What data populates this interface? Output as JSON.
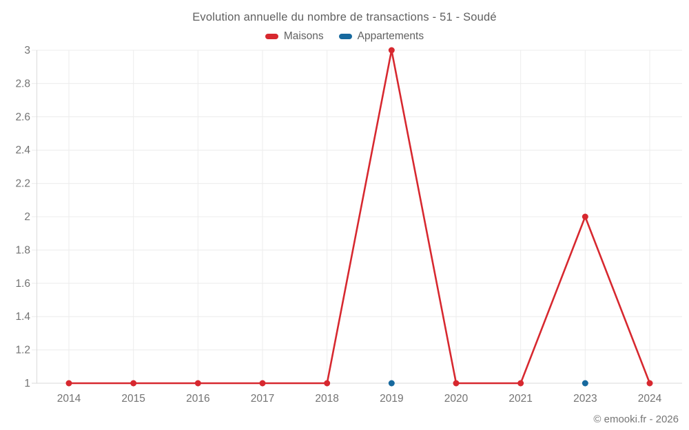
{
  "chart_data": {
    "type": "line",
    "title": "Evolution annuelle du nombre de transactions - 51 - Soudé",
    "categories": [
      "2014",
      "2015",
      "2016",
      "2017",
      "2018",
      "2019",
      "2020",
      "2021",
      "2023",
      "2024"
    ],
    "series": [
      {
        "name": "Maisons",
        "color": "#d7282f",
        "draw_line": true,
        "values": [
          1,
          1,
          1,
          1,
          1,
          3,
          1,
          1,
          2,
          1
        ]
      },
      {
        "name": "Appartements",
        "color": "#17699e",
        "draw_line": false,
        "values": [
          null,
          null,
          null,
          null,
          null,
          1,
          null,
          null,
          1,
          null
        ]
      }
    ],
    "xlabel": "",
    "ylabel": "",
    "ylim": [
      1,
      3
    ],
    "yticks": [
      1,
      1.2,
      1.4,
      1.6,
      1.8,
      2,
      2.2,
      2.4,
      2.6,
      2.8,
      3
    ],
    "ytick_labels": [
      "1",
      "1.2",
      "1.4",
      "1.6",
      "1.8",
      "2",
      "2.2",
      "2.4",
      "2.6",
      "2.8",
      "3"
    ],
    "grid": true,
    "legend_position": "top",
    "footer": "© emooki.fr - 2026"
  },
  "colors": {
    "maisons": "#d7282f",
    "appartements": "#17699e",
    "gridline": "#ececec",
    "axis": "#dadada",
    "tick_text": "#737373",
    "title_text": "#606060"
  }
}
